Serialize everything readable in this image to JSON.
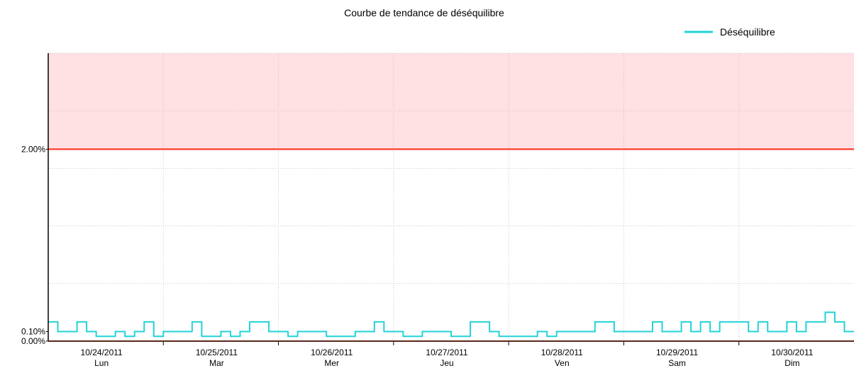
{
  "chart_data": {
    "type": "line",
    "title": "Courbe de tendance de déséquilibre",
    "step": true,
    "x": [
      0,
      2,
      4,
      6,
      8,
      10,
      12,
      14,
      16,
      18,
      20,
      22,
      24,
      26,
      28,
      30,
      32,
      34,
      36,
      38,
      40,
      42,
      44,
      46,
      48,
      50,
      52,
      54,
      56,
      58,
      60,
      62,
      64,
      66,
      68,
      70,
      72,
      74,
      76,
      78,
      80,
      82,
      84,
      86,
      88,
      90,
      92,
      94,
      96,
      98,
      100,
      102,
      104,
      106,
      108,
      110,
      112,
      114,
      116,
      118,
      120,
      122,
      124,
      126,
      128,
      130,
      132,
      134,
      136,
      138,
      140,
      142,
      144,
      146,
      148,
      150,
      152,
      154,
      156,
      158,
      160,
      162,
      164,
      166
    ],
    "series": [
      {
        "name": "Déséquilibre",
        "color": "#22d3d8",
        "values": [
          0.2,
          0.1,
          0.1,
          0.2,
          0.1,
          0.05,
          0.05,
          0.1,
          0.05,
          0.1,
          0.2,
          0.05,
          0.1,
          0.1,
          0.1,
          0.2,
          0.05,
          0.05,
          0.1,
          0.05,
          0.1,
          0.2,
          0.2,
          0.1,
          0.1,
          0.05,
          0.1,
          0.1,
          0.1,
          0.05,
          0.05,
          0.05,
          0.1,
          0.1,
          0.2,
          0.1,
          0.1,
          0.05,
          0.05,
          0.1,
          0.1,
          0.1,
          0.05,
          0.05,
          0.2,
          0.2,
          0.1,
          0.05,
          0.05,
          0.05,
          0.05,
          0.1,
          0.05,
          0.1,
          0.1,
          0.1,
          0.1,
          0.2,
          0.2,
          0.1,
          0.1,
          0.1,
          0.1,
          0.2,
          0.1,
          0.1,
          0.2,
          0.1,
          0.2,
          0.1,
          0.2,
          0.2,
          0.2,
          0.1,
          0.2,
          0.1,
          0.1,
          0.2,
          0.1,
          0.2,
          0.2,
          0.3,
          0.2,
          0.1
        ]
      }
    ],
    "xlim": [
      0,
      168
    ],
    "xticks": [
      {
        "value": 12,
        "label": "10/24/2011",
        "sublabel": "Lun"
      },
      {
        "value": 36,
        "label": "10/25/2011",
        "sublabel": "Mar"
      },
      {
        "value": 60,
        "label": "10/26/2011",
        "sublabel": "Mer"
      },
      {
        "value": 84,
        "label": "10/27/2011",
        "sublabel": "Jeu"
      },
      {
        "value": 108,
        "label": "10/28/2011",
        "sublabel": "Ven"
      },
      {
        "value": 132,
        "label": "10/29/2011",
        "sublabel": "Sam"
      },
      {
        "value": 156,
        "label": "10/30/2011",
        "sublabel": "Dim"
      }
    ],
    "xgrid": [
      24,
      48,
      72,
      96,
      120,
      144
    ],
    "ylim": [
      0,
      3
    ],
    "yticks": [
      {
        "value": 0,
        "label": "0.00%"
      },
      {
        "value": 0.1,
        "label": "0.10%"
      },
      {
        "value": 2,
        "label": "2.00%"
      }
    ],
    "ygrid": [
      0.6,
      1.2,
      1.8,
      2.4,
      3
    ],
    "threshold": 2,
    "threshold_color": "#ff2a1a",
    "alarm_fill": "#ffe0e3",
    "grid": true,
    "legend": "top-right"
  }
}
